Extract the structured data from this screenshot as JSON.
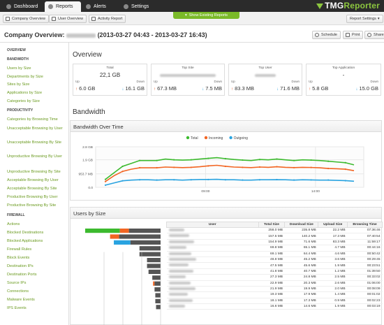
{
  "nav": {
    "tabs": [
      {
        "label": "Dashboard",
        "active": false
      },
      {
        "label": "Reports",
        "active": true
      },
      {
        "label": "Alerts",
        "active": false
      },
      {
        "label": "Settings",
        "active": false
      }
    ],
    "logo_main": "TMG",
    "logo_accent": "Reporter"
  },
  "subbar": {
    "company_overview": "Company Overview",
    "user_overview": "User Overview",
    "activity_report": "Activity Report",
    "show_existing": "Show Existing Reports",
    "report_settings": "Report Settings"
  },
  "title": {
    "prefix": "Company Overview:",
    "range": "(2013-03-27 04:43 - 2013-03-27 16:43)",
    "schedule": "Schedule",
    "print": "Print",
    "share": "Share"
  },
  "sidebar": {
    "sections": [
      {
        "label": "OVERVIEW",
        "items": []
      },
      {
        "label": "BANDWIDTH",
        "items": [
          "Users by Size",
          "Departments by Size",
          "Sites by Size",
          "Applications by Size",
          "Categories by Size"
        ]
      },
      {
        "label": "PRODUCTIVITY",
        "items": [
          "Categories by Browsing Time",
          "Unacceptable Browsing by User",
          "Unacceptable Browsing By Site",
          "Unproductive Browsing By User",
          "Unproductive Browsing By Site",
          "Acceptable Browsing By User",
          "Acceptable Browsing By Site",
          "Productive Browsing By User",
          "Productive Browsing By Site"
        ]
      },
      {
        "label": "FIREWALL",
        "items": [
          "Actions",
          "Blocked Destinations",
          "Blocked Applications",
          "Firewall Rules",
          "Block Events",
          "Destination IPs",
          "Destination Ports",
          "Source IPs",
          "Connections",
          "Malware Events",
          "IPS Events"
        ]
      }
    ]
  },
  "overview": {
    "heading": "Overview",
    "cards": [
      {
        "label": "Total",
        "value": "22,1 GB",
        "up": "6.0 GB",
        "down": "16.1 GB"
      },
      {
        "label": "Top Site",
        "value": "",
        "up": "67.3 MB",
        "down": "7.5 MB"
      },
      {
        "label": "Top User",
        "value": "",
        "up": "83.3 MB",
        "down": "71.6 MB"
      },
      {
        "label": "Top Application",
        "value": "-",
        "up": "5.8 GB",
        "down": "15.0 GB"
      }
    ],
    "up_label": "Up",
    "down_label": "Down"
  },
  "bandwidth": {
    "heading": "Bandwidth",
    "panel_title": "Bandwidth Over Time"
  },
  "chart_data": {
    "type": "line",
    "title": "Bandwidth Over Time",
    "yticks": [
      "2.8 GB",
      "1.9 GB",
      "953.7 MB",
      "0.0"
    ],
    "xticks": [
      "09:00",
      "14:00"
    ],
    "ylim_gb": [
      0,
      2.8
    ],
    "legend_position": "top-center",
    "series": [
      {
        "name": "Total",
        "color": "#3cba2e",
        "values": [
          0.55,
          1.0,
          1.45,
          1.65,
          1.85,
          1.85,
          1.85,
          1.95,
          1.9,
          1.88,
          1.9,
          1.95,
          2.0,
          2.05,
          1.98,
          1.92,
          1.88,
          1.85,
          1.92,
          1.9,
          1.95,
          1.9,
          1.85,
          1.9,
          1.88,
          1.85,
          1.8,
          1.75,
          1.7,
          1.55
        ]
      },
      {
        "name": "Incoming",
        "color": "#f26522",
        "values": [
          0.4,
          0.8,
          1.1,
          1.25,
          1.35,
          1.35,
          1.35,
          1.4,
          1.38,
          1.36,
          1.38,
          1.42,
          1.48,
          1.52,
          1.45,
          1.4,
          1.38,
          1.36,
          1.4,
          1.38,
          1.42,
          1.38,
          1.36,
          1.38,
          1.37,
          1.35,
          1.3,
          1.28,
          1.25,
          1.15
        ]
      },
      {
        "name": "Outgoing",
        "color": "#29a3e0",
        "values": [
          0.15,
          0.3,
          0.45,
          0.5,
          0.52,
          0.52,
          0.5,
          0.52,
          0.52,
          0.5,
          0.52,
          0.54,
          0.54,
          0.55,
          0.52,
          0.52,
          0.5,
          0.5,
          0.52,
          0.52,
          0.53,
          0.52,
          0.5,
          0.52,
          0.51,
          0.5,
          0.5,
          0.48,
          0.46,
          0.42
        ]
      }
    ]
  },
  "users": {
    "panel_title": "Users by Size",
    "columns": [
      "User",
      "Total Size",
      "Download Size",
      "Upload Size",
      "Browsing Time"
    ],
    "rows": [
      {
        "total": "258.0 MB",
        "download": "235.8 MB",
        "upload": "22.2 MB",
        "time": "07:36:46",
        "bar": [
          0.46,
          0.12,
          0.42
        ]
      },
      {
        "total": "157.5 MB",
        "download": "140.2 MB",
        "upload": "17.3 MB",
        "time": "07:40:54",
        "bar": [
          0.0,
          0.12,
          0.55
        ]
      },
      {
        "total": "154.9 MB",
        "download": "71.6 MB",
        "upload": "83.3 MB",
        "time": "11:59:17",
        "bar": [
          0.0,
          0.22,
          0.4
        ]
      },
      {
        "total": "69.8 MB",
        "download": "65.1 MB",
        "upload": "4.7 MB",
        "time": "00:44:16",
        "bar": [
          0.0,
          0.0,
          0.28
        ]
      },
      {
        "total": "69.1 MB",
        "download": "64.4 MB",
        "upload": "4.6 MB",
        "time": "00:50:42",
        "bar": [
          0.0,
          0.0,
          0.28
        ]
      },
      {
        "total": "48.8 MB",
        "download": "45.2 MB",
        "upload": "3.6 MB",
        "time": "00:29:45",
        "bar": [
          0.0,
          0.0,
          0.18
        ]
      },
      {
        "total": "47.5 MB",
        "download": "45.6 MB",
        "upload": "1.9 MB",
        "time": "00:23:51",
        "bar": [
          0.0,
          0.0,
          0.18
        ]
      },
      {
        "total": "41.8 MB",
        "download": "40.7 MB",
        "upload": "1.2 MB",
        "time": "01:39:50",
        "bar": [
          0.0,
          0.0,
          0.16
        ]
      },
      {
        "total": "27.3 MB",
        "download": "24.8 MB",
        "upload": "2.5 MB",
        "time": "00:33:02",
        "bar": [
          0.0,
          0.0,
          0.11
        ]
      },
      {
        "total": "22.9 MB",
        "download": "20.3 MB",
        "upload": "2.6 MB",
        "time": "01:06:00",
        "bar": [
          0.0,
          0.02,
          0.08
        ]
      },
      {
        "total": "21.9 MB",
        "download": "19.9 MB",
        "upload": "2.0 MB",
        "time": "00:08:09",
        "bar": [
          0.0,
          0.0,
          0.08
        ]
      },
      {
        "total": "19.3 MB",
        "download": "17.9 MB",
        "upload": "1.4 MB",
        "time": "00:01:02",
        "bar": [
          0.0,
          0.0,
          0.07
        ]
      },
      {
        "total": "18.1 MB",
        "download": "17.3 MB",
        "upload": "0.9 MB",
        "time": "00:02:23",
        "bar": [
          0.0,
          0.0,
          0.07
        ]
      },
      {
        "total": "16.6 MB",
        "download": "14.6 MB",
        "upload": "1.9 MB",
        "time": "00:03:19",
        "bar": [
          0.0,
          0.0,
          0.06
        ]
      }
    ]
  }
}
